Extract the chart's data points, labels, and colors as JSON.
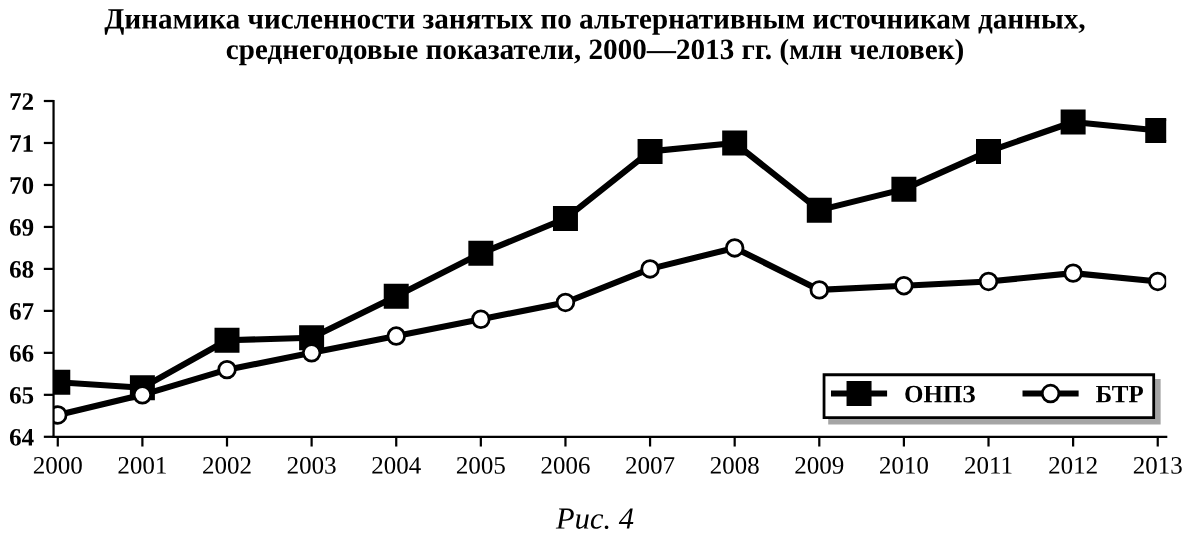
{
  "chart_data": {
    "type": "line",
    "title": "Динамика численности занятых по альтернативным источникам данных,\nсреднегодовые показатели, 2000—2013 гг. (млн человек)",
    "categories": [
      "2000",
      "2001",
      "2002",
      "2003",
      "2004",
      "2005",
      "2006",
      "2007",
      "2008",
      "2009",
      "2010",
      "2011",
      "2012",
      "2013"
    ],
    "series": [
      {
        "name": "ОНПЗ",
        "color": "#000000",
        "marker": "square",
        "values": [
          65.3,
          65.17,
          66.3,
          66.36,
          67.35,
          68.37,
          69.2,
          70.8,
          71.0,
          69.4,
          69.9,
          70.8,
          71.5,
          71.3
        ]
      },
      {
        "name": "БТР",
        "color": "#000000",
        "marker": "circle",
        "values": [
          64.52,
          65.0,
          65.6,
          66.0,
          66.4,
          66.8,
          67.2,
          68.0,
          68.5,
          67.5,
          67.6,
          67.7,
          67.9,
          67.7
        ]
      }
    ],
    "ylim": [
      64,
      72
    ],
    "yticks": [
      64,
      65,
      66,
      67,
      68,
      69,
      70,
      71,
      72
    ],
    "grid": false,
    "legend": "bottom right",
    "line_style": "solid",
    "annotations": [
      "Рис. 4"
    ]
  }
}
